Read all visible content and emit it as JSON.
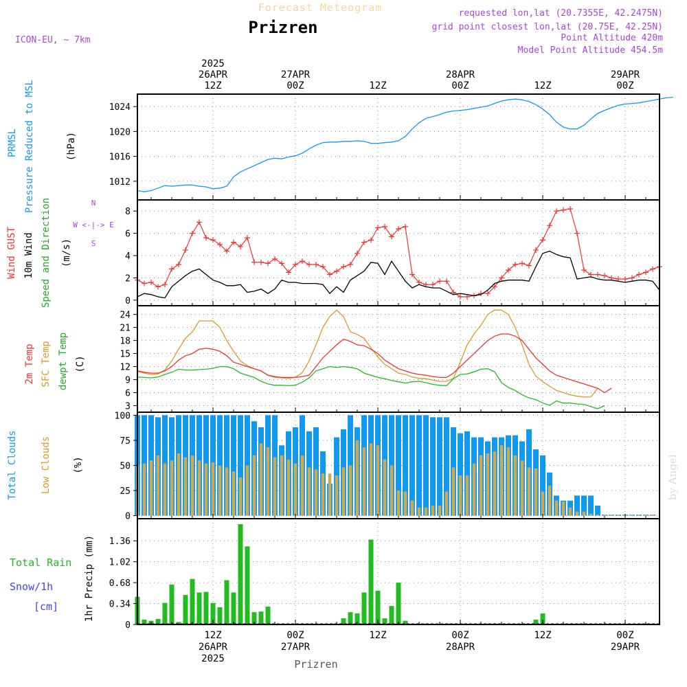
{
  "header": {
    "title": "Forecast Meteogram",
    "location": "Prizren",
    "model": "ICON-EU, ~ 7km",
    "requested": "requested lon,lat (20.7355E, 42.2475N)",
    "gridpoint": "grid point closest lon,lat (20.75E, 42.25N)",
    "point_altitude": "Point Altitude 420m",
    "model_altitude": "Model Point Altitude 454.5m",
    "footer_location": "Prizren",
    "credit": "by Angel"
  },
  "colors": {
    "pressure": "#1199ee",
    "gust": "#ee3333",
    "wind": "#000000",
    "temp2m": "#ee3333",
    "sfctemp": "#dd9922",
    "dewpt": "#22bb22",
    "total_clouds": "#1199ee",
    "low_clouds": "#ccaa55",
    "rain": "#22bb22",
    "snow": "#4444ee",
    "info": "#aa44dd"
  },
  "time_axis": {
    "top_labels": [
      {
        "h": 12,
        "lines": [
          "2025",
          "26APR",
          "12Z"
        ]
      },
      {
        "h": 24,
        "lines": [
          "27APR",
          "00Z"
        ]
      },
      {
        "h": 36,
        "lines": [
          "12Z"
        ]
      },
      {
        "h": 48,
        "lines": [
          "28APR",
          "00Z"
        ]
      },
      {
        "h": 60,
        "lines": [
          "12Z"
        ]
      },
      {
        "h": 72,
        "lines": [
          "29APR",
          "00Z"
        ]
      }
    ],
    "bottom_labels": [
      {
        "h": 12,
        "lines": [
          "12Z",
          "26APR",
          "2025"
        ]
      },
      {
        "h": 24,
        "lines": [
          "00Z",
          "27APR"
        ]
      },
      {
        "h": 36,
        "lines": [
          "12Z"
        ]
      },
      {
        "h": 48,
        "lines": [
          "00Z",
          "28APR"
        ]
      },
      {
        "h": 60,
        "lines": [
          "12Z"
        ]
      },
      {
        "h": 72,
        "lines": [
          "00Z",
          "29APR"
        ]
      }
    ]
  },
  "chart_data": [
    {
      "type": "line",
      "id": "pressure",
      "y_labels": [
        "PRMSL",
        "Pressure Reduced to MSL",
        "(hPa)"
      ],
      "ylim": [
        1009,
        1026
      ],
      "yticks": [
        1012,
        1016,
        1020,
        1024
      ],
      "series": [
        {
          "key": "prmsl",
          "values": [
            1010.5,
            1010.3,
            1010.5,
            1010.9,
            1011.3,
            1011.2,
            1011.3,
            1011.4,
            1011.4,
            1011.2,
            1011.1,
            1010.8,
            1010.9,
            1011.2,
            1012.7,
            1013.5,
            1014,
            1014.5,
            1015,
            1015.5,
            1015.7,
            1015.6,
            1015.9,
            1016.1,
            1016.5,
            1017.2,
            1017.8,
            1018.2,
            1018.3,
            1018.3,
            1018.4,
            1018.4,
            1018.5,
            1018.4,
            1018.1,
            1018.1,
            1018.2,
            1018.3,
            1018.5,
            1019.2,
            1020.4,
            1021.4,
            1022.1,
            1022.4,
            1022.7,
            1023.1,
            1023.3,
            1023.4,
            1023.5,
            1023.7,
            1023.9,
            1024.1,
            1024.5,
            1024.9,
            1025.1,
            1025.2,
            1025.1,
            1024.8,
            1024.3,
            1023.6,
            1022.7,
            1021.5,
            1020.7,
            1020.4,
            1020.4,
            1021,
            1022,
            1022.9,
            1023.4,
            1023.8,
            1024.2,
            1024.4,
            1024.5,
            1024.6,
            1024.8,
            1025,
            1025.2,
            1025.4,
            1025.5
          ]
        }
      ]
    },
    {
      "type": "line",
      "id": "wind",
      "y_labels": [
        "Wind GUST",
        "10m Wind",
        "Speed and Direction",
        "(m/s)"
      ],
      "compass": [
        "N",
        "W <-|-> E",
        "S"
      ],
      "ylim": [
        -0.5,
        9
      ],
      "yticks": [
        0,
        2,
        4,
        6,
        8
      ],
      "series": [
        {
          "key": "gust",
          "values": [
            1.8,
            1.5,
            1.6,
            1.2,
            1.4,
            2.8,
            3.2,
            4.5,
            6,
            7,
            5.6,
            5.4,
            5,
            4.4,
            5.2,
            4.8,
            5.6,
            3.4,
            3.4,
            3.3,
            3.7,
            3.3,
            2.5,
            3.2,
            3.5,
            3.2,
            3.2,
            3,
            2.3,
            2.6,
            3,
            3.2,
            4.2,
            5.2,
            5.4,
            6.5,
            6.6,
            5.7,
            6.4,
            6.6,
            2.3,
            1.6,
            1.4,
            1.4,
            1.7,
            1.7,
            0.7,
            0.3,
            0.3,
            0.4,
            0.6,
            0.6,
            1.2,
            2,
            2.7,
            3.2,
            3.3,
            3.1,
            4.5,
            5.4,
            6.7,
            8,
            8.1,
            8.2,
            6,
            2.7,
            2.3,
            2.3,
            2.2,
            2,
            1.9,
            1.9,
            2,
            2.3,
            2.5,
            2.8,
            3
          ]
        },
        {
          "key": "wind",
          "values": [
            0.3,
            0.6,
            0.5,
            0.3,
            0.2,
            1.2,
            1.7,
            2.2,
            2.6,
            2.8,
            2.3,
            1.8,
            1.6,
            1.3,
            1.3,
            1.4,
            0.7,
            0.8,
            1,
            0.6,
            1,
            1.8,
            1.6,
            1.6,
            1.5,
            1.5,
            1.5,
            1.4,
            0.6,
            1.2,
            0.7,
            1.8,
            2.2,
            2.6,
            3.4,
            3.3,
            2.3,
            3.5,
            2.6,
            1.7,
            1.1,
            1.4,
            1.2,
            1.1,
            1.1,
            0.8,
            0.5,
            0.6,
            0.5,
            0.4,
            0.5,
            0.9,
            1.5,
            1.7,
            1.8,
            1.8,
            1.8,
            1.7,
            3,
            4.2,
            4.4,
            4.1,
            3.9,
            3.8,
            1.9,
            2,
            2.1,
            1.9,
            1.8,
            1.8,
            1.7,
            1.6,
            1.7,
            1.8,
            1.8,
            1.7,
            0.9
          ]
        }
      ]
    },
    {
      "type": "line",
      "id": "temperature",
      "y_labels": [
        "2m Temp",
        "SFC Temp",
        "dewpt Temp",
        "(C)"
      ],
      "ylim": [
        1.5,
        26
      ],
      "yticks": [
        3,
        6,
        9,
        12,
        15,
        18,
        21,
        24
      ],
      "series": [
        {
          "key": "t2m",
          "values": [
            11,
            10.7,
            10.5,
            10.5,
            11,
            12,
            13.5,
            14.5,
            15,
            16,
            16.2,
            16,
            15.5,
            14.5,
            13,
            12.5,
            12,
            11.5,
            11,
            10,
            9.7,
            9.5,
            9.5,
            9.5,
            9.7,
            10,
            12,
            14,
            15.5,
            17,
            18.3,
            17.8,
            17,
            16.8,
            16,
            15,
            13.5,
            12.5,
            11.5,
            11,
            10.5,
            10.2,
            10,
            9.7,
            9.5,
            9.5,
            10.5,
            12,
            13.5,
            15,
            16.5,
            18,
            19,
            19.5,
            19.5,
            19,
            18,
            16,
            14,
            12.5,
            11,
            10,
            9.5,
            9,
            8.5,
            8,
            7.5,
            7,
            6,
            7
          ]
        },
        {
          "key": "tsfc",
          "values": [
            10.9,
            10.5,
            10.2,
            10.3,
            11.2,
            13.3,
            16,
            18.5,
            20,
            22.5,
            22.5,
            22.5,
            21,
            18,
            15.5,
            13.3,
            12.2,
            11.5,
            11,
            10,
            9.5,
            9.4,
            9.3,
            9.5,
            10.6,
            13.3,
            17,
            21,
            23.5,
            25,
            23.5,
            20,
            19.4,
            18.5,
            16.3,
            14.2,
            12.5,
            11.5,
            10.5,
            10.2,
            9.6,
            9.3,
            9.2,
            8.9,
            8.6,
            8.6,
            9.3,
            13,
            17,
            19.5,
            21.5,
            24,
            25,
            25,
            24,
            21,
            17,
            12.5,
            9.8,
            8.5,
            7.5,
            6.5,
            6,
            5.5,
            5.2,
            5,
            5,
            7
          ]
        },
        {
          "key": "dewpt",
          "values": [
            9.6,
            9.5,
            9.4,
            9.6,
            10.2,
            10.7,
            11.4,
            11.2,
            11.2,
            11.3,
            11.4,
            11.6,
            12,
            12,
            11.5,
            10.5,
            10,
            9.5,
            8.6,
            8,
            7.7,
            7.7,
            7.6,
            7.7,
            8.4,
            9.4,
            11,
            11.5,
            12,
            11.8,
            12,
            11.8,
            11.5,
            10.5,
            10,
            9.5,
            9.2,
            8.8,
            8.5,
            8.2,
            8.5,
            8.6,
            8.3,
            7.9,
            7.7,
            7.6,
            9.2,
            10.2,
            10.3,
            10.8,
            11.4,
            11.5,
            10.8,
            8.3,
            7.2,
            6.5,
            5.5,
            4.8,
            4.4,
            3.6,
            3.1,
            4.1,
            3.6,
            3.6,
            3.4,
            3.3,
            2.8,
            2.3,
            3
          ]
        }
      ]
    },
    {
      "type": "bar",
      "id": "clouds",
      "y_labels": [
        "Total Clouds",
        "Low Clouds",
        "(%)"
      ],
      "ylim": [
        -3,
        103
      ],
      "yticks": [
        0,
        25,
        50,
        75,
        100
      ],
      "series": [
        {
          "key": "total",
          "values": [
            100,
            100,
            100,
            98,
            100,
            98,
            100,
            100,
            100,
            100,
            100,
            100,
            100,
            100,
            100,
            100,
            100,
            94,
            88,
            100,
            100,
            70,
            84,
            88,
            100,
            84,
            88,
            64,
            32,
            78,
            86,
            100,
            88,
            100,
            100,
            100,
            100,
            100,
            100,
            100,
            100,
            100,
            100,
            98,
            98,
            98,
            88,
            82,
            84,
            78,
            78,
            74,
            78,
            78,
            80,
            80,
            74,
            86,
            66,
            60,
            43,
            20,
            15,
            15,
            20,
            20,
            20,
            10,
            1,
            1,
            1,
            1,
            1,
            1,
            1,
            1
          ]
        },
        {
          "key": "low",
          "values": [
            50,
            52,
            55,
            60,
            52,
            55,
            62,
            58,
            60,
            55,
            52,
            53,
            50,
            48,
            44,
            38,
            50,
            60,
            72,
            68,
            58,
            60,
            56,
            52,
            60,
            48,
            46,
            42,
            42,
            40,
            48,
            50,
            75,
            68,
            72,
            70,
            56,
            50,
            25,
            24,
            15,
            8,
            8,
            10,
            10,
            24,
            48,
            40,
            40,
            52,
            60,
            62,
            64,
            70,
            68,
            60,
            55,
            48,
            47,
            24,
            30,
            15,
            14,
            8,
            4,
            4,
            2,
            1,
            1,
            1,
            1,
            1,
            1,
            1,
            1,
            1
          ]
        }
      ]
    },
    {
      "type": "bar",
      "id": "precip",
      "y_labels": [
        "Total Rain",
        "Snow/1h",
        "[cm]",
        "1hr Precip (mm)"
      ],
      "ylim": [
        0,
        1.72
      ],
      "yticks": [
        0,
        0.34,
        0.68,
        1.02,
        1.36
      ],
      "series": [
        {
          "key": "rain",
          "values": [
            0.45,
            0.08,
            0.06,
            0.09,
            0.35,
            0.65,
            0.04,
            0.48,
            0.74,
            0.52,
            0.53,
            0.35,
            0.28,
            0.72,
            0.52,
            1.63,
            1.27,
            0.2,
            0.21,
            0.29,
            0,
            0,
            0,
            0,
            0,
            0,
            0,
            0,
            0,
            0,
            0.1,
            0.2,
            0.18,
            0.52,
            1.38,
            0.55,
            0.1,
            0.3,
            0.68,
            0.06,
            0,
            0,
            0,
            0,
            0,
            0,
            0,
            0,
            0,
            0,
            0,
            0,
            0,
            0,
            0,
            0,
            0,
            0,
            0.08,
            0.18,
            0,
            0,
            0,
            0,
            0,
            0,
            0,
            0,
            0,
            0,
            0,
            0,
            0,
            0,
            0,
            0
          ]
        },
        {
          "key": "snow",
          "values": [
            0,
            0,
            0,
            0,
            0,
            0,
            0,
            0,
            0,
            0,
            0,
            0,
            0,
            0,
            0,
            0,
            0,
            0,
            0,
            0,
            0,
            0,
            0,
            0,
            0,
            0,
            0,
            0,
            0,
            0,
            0,
            0,
            0,
            0,
            0,
            0,
            0,
            0,
            0,
            0,
            0,
            0,
            0,
            0,
            0,
            0,
            0,
            0,
            0,
            0,
            0,
            0,
            0,
            0,
            0,
            0,
            0,
            0,
            0,
            0,
            0,
            0,
            0,
            0,
            0,
            0,
            0,
            0,
            0,
            0,
            0,
            0,
            0,
            0,
            0,
            0
          ]
        }
      ]
    }
  ]
}
